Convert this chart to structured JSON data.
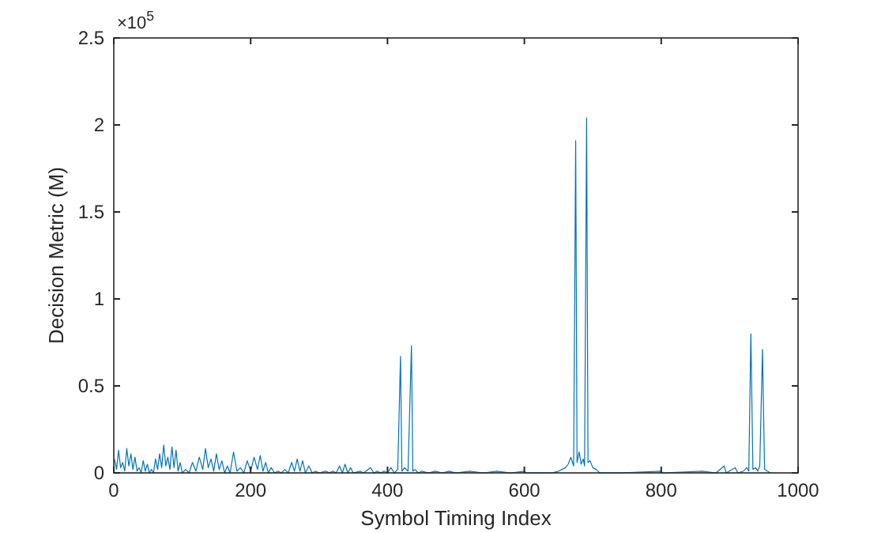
{
  "chart_data": {
    "type": "line",
    "xlabel": "Symbol Timing Index",
    "ylabel": "Decision Metric (M)",
    "annotations": [
      "×10$^{5}$"
    ],
    "xlim": [
      0,
      1000
    ],
    "xticks": [
      0,
      200,
      400,
      600,
      800,
      1000
    ],
    "ylim": [
      0,
      2.5
    ],
    "yticks": [
      0,
      0.5,
      1,
      1.5,
      2,
      2.5
    ],
    "marker": "none",
    "line_style": "solid",
    "series": [
      {
        "color": "#0072bd",
        "x": [
          1,
          4,
          7,
          10,
          13,
          16,
          19,
          22,
          25,
          28,
          31,
          34,
          37,
          40,
          43,
          46,
          49,
          52,
          55,
          58,
          61,
          64,
          67,
          70,
          73,
          76,
          79,
          82,
          85,
          88,
          91,
          94,
          97,
          100,
          105,
          110,
          115,
          120,
          125,
          130,
          134,
          138,
          142,
          146,
          150,
          154,
          158,
          162,
          166,
          170,
          175,
          180,
          185,
          190,
          195,
          200,
          205,
          210,
          214,
          218,
          222,
          226,
          230,
          235,
          240,
          245,
          250,
          255,
          260,
          264,
          268,
          272,
          276,
          280,
          285,
          290,
          295,
          300,
          310,
          315,
          320,
          325,
          330,
          334,
          338,
          342,
          346,
          350,
          360,
          365,
          375,
          380,
          385,
          390,
          395,
          400,
          405,
          410,
          415,
          419,
          421,
          425,
          430,
          435,
          437,
          440,
          445,
          450,
          460,
          470,
          480,
          490,
          500,
          520,
          540,
          560,
          580,
          600,
          602,
          640,
          650,
          655,
          660,
          664,
          668,
          672,
          675,
          677,
          680,
          683,
          686,
          688,
          691,
          693,
          696,
          700,
          705,
          710,
          740,
          800,
          802,
          860,
          880,
          892,
          895,
          908,
          912,
          920,
          925,
          928,
          931,
          934,
          938,
          941,
          944,
          948,
          951,
          955,
          960
        ],
        "values": [
          0.08,
          0.02,
          0.13,
          0.03,
          0.06,
          0.01,
          0.14,
          0.04,
          0.11,
          0.02,
          0.09,
          0.01,
          0.03,
          0,
          0.07,
          0.01,
          0.05,
          0,
          0.02,
          0,
          0.08,
          0.02,
          0.11,
          0.03,
          0.16,
          0.04,
          0.09,
          0.02,
          0.15,
          0.03,
          0.13,
          0.01,
          0.06,
          0,
          0.02,
          0,
          0.06,
          0.01,
          0.09,
          0.02,
          0.14,
          0.03,
          0.08,
          0.01,
          0.11,
          0.02,
          0.07,
          0,
          0.04,
          0,
          0.12,
          0.01,
          0.03,
          0,
          0.07,
          0.01,
          0.09,
          0.02,
          0.1,
          0.01,
          0.06,
          0,
          0.03,
          0,
          0.01,
          0,
          0.02,
          0,
          0.06,
          0.01,
          0.08,
          0.01,
          0.07,
          0,
          0.04,
          0,
          0.01,
          0,
          0.01,
          0,
          0.01,
          0,
          0.04,
          0,
          0.05,
          0,
          0.03,
          0,
          0.01,
          0,
          0.03,
          0,
          0.01,
          0,
          0.01,
          0,
          0.03,
          0,
          0.02,
          0.67,
          0.01,
          0.03,
          0.01,
          0.73,
          0.01,
          0.02,
          0,
          0.01,
          0,
          0.01,
          0,
          0.01,
          0,
          0.01,
          0,
          0.01,
          0,
          0.01,
          0,
          0,
          0.01,
          0.02,
          0.03,
          0.05,
          0.09,
          0.04,
          1.91,
          0.06,
          0.12,
          0.05,
          0.08,
          0.04,
          2.04,
          0.06,
          0.07,
          0.03,
          0.02,
          0,
          0,
          0.01,
          0,
          0.01,
          0,
          0.04,
          0,
          0.03,
          0,
          0.01,
          0.03,
          0.01,
          0.8,
          0.02,
          0.03,
          0.01,
          0.04,
          0.71,
          0.02,
          0.01,
          0
        ]
      }
    ]
  }
}
